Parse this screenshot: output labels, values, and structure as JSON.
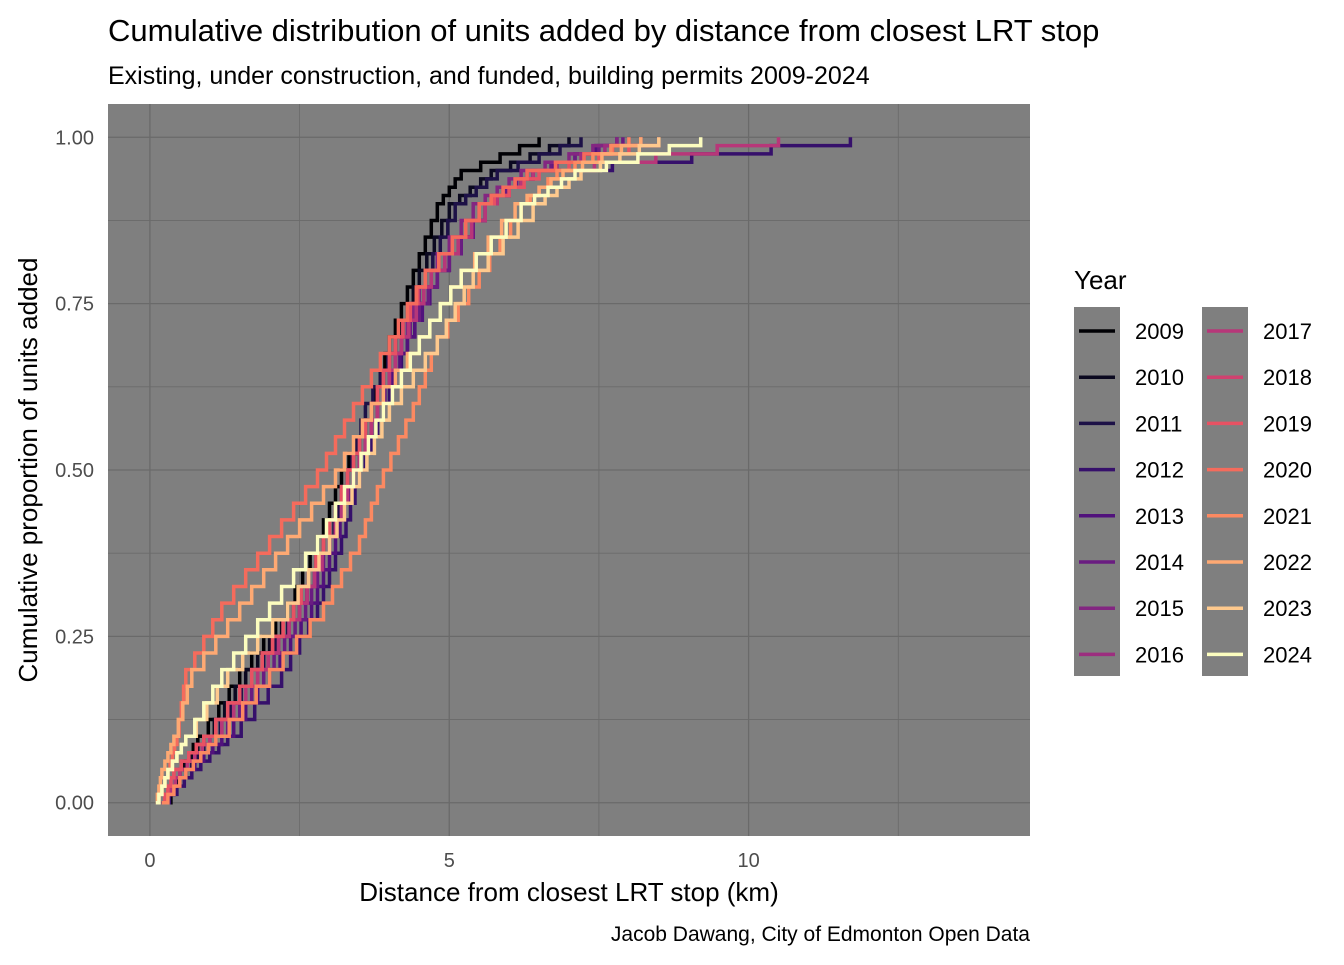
{
  "chart_data": {
    "type": "line",
    "title": "Cumulative distribution of units added by distance from closest LRT stop",
    "subtitle": "Existing, under construction, and funded, building permits 2009-2024",
    "xlabel": "Distance from closest LRT stop (km)",
    "ylabel": "Cumulative proportion of units added",
    "caption": "Jacob Dawang, City of Edmonton Open Data",
    "xlim": [
      -0.7,
      14.7
    ],
    "ylim": [
      -0.05,
      1.05
    ],
    "x_ticks": [
      {
        "value": 0,
        "label": "0"
      },
      {
        "value": 5,
        "label": "5"
      },
      {
        "value": 10,
        "label": "10"
      }
    ],
    "y_ticks": [
      {
        "value": 0,
        "label": "0.00"
      },
      {
        "value": 0.25,
        "label": "0.25"
      },
      {
        "value": 0.5,
        "label": "0.50"
      },
      {
        "value": 0.75,
        "label": "0.75"
      },
      {
        "value": 1,
        "label": "1.00"
      }
    ],
    "grid": true,
    "panel_background": "#7F7F7F",
    "grid_color": "#6A6A6A",
    "legend": {
      "title": "Year",
      "placement": "right"
    },
    "y_levels": [
      0,
      0.05,
      0.1,
      0.2,
      0.3,
      0.4,
      0.5,
      0.6,
      0.7,
      0.8,
      0.9,
      0.95,
      1.0
    ],
    "series": [
      {
        "name": "2009",
        "color": "#000004",
        "x": [
          0.3,
          0.5,
          0.8,
          1.5,
          2.3,
          2.8,
          3.2,
          3.7,
          4.0,
          4.4,
          4.8,
          5.2,
          6.5
        ]
      },
      {
        "name": "2010",
        "color": "#0B0920",
        "x": [
          0.2,
          0.5,
          0.9,
          1.6,
          2.4,
          2.9,
          3.3,
          3.7,
          4.1,
          4.5,
          5.0,
          5.7,
          7.0
        ]
      },
      {
        "name": "2011",
        "color": "#1D1147",
        "x": [
          0.2,
          0.6,
          1.0,
          1.7,
          2.5,
          3.0,
          3.3,
          3.6,
          4.1,
          4.6,
          5.1,
          5.8,
          7.2
        ]
      },
      {
        "name": "2012",
        "color": "#36106B",
        "x": [
          0.2,
          0.7,
          1.3,
          2.2,
          2.8,
          3.2,
          3.5,
          3.9,
          4.3,
          4.8,
          5.6,
          6.4,
          11.7
        ]
      },
      {
        "name": "2013",
        "color": "#51127C",
        "x": [
          0.2,
          0.6,
          1.2,
          2.0,
          2.7,
          3.1,
          3.4,
          3.8,
          4.3,
          4.8,
          5.6,
          6.4,
          7.8
        ]
      },
      {
        "name": "2014",
        "color": "#6A1C81",
        "x": [
          0.2,
          0.6,
          1.1,
          1.9,
          2.6,
          3.0,
          3.4,
          3.8,
          4.2,
          4.8,
          5.6,
          6.3,
          7.9
        ]
      },
      {
        "name": "2015",
        "color": "#832681",
        "x": [
          0.2,
          0.5,
          1.0,
          1.8,
          2.5,
          3.0,
          3.4,
          3.8,
          4.2,
          4.6,
          5.4,
          6.2,
          7.8
        ]
      },
      {
        "name": "2016",
        "color": "#9C2E7F",
        "x": [
          0.2,
          0.5,
          1.0,
          1.8,
          2.5,
          3.0,
          3.4,
          3.8,
          4.2,
          4.7,
          5.6,
          6.4,
          8.0
        ]
      },
      {
        "name": "2017",
        "color": "#B73779",
        "x": [
          0.2,
          0.5,
          1.0,
          1.8,
          2.5,
          3.0,
          3.4,
          3.8,
          4.2,
          4.7,
          5.6,
          6.4,
          10.5
        ]
      },
      {
        "name": "2018",
        "color": "#D0416F",
        "x": [
          0.2,
          0.4,
          0.9,
          1.7,
          2.4,
          2.9,
          3.3,
          3.7,
          4.1,
          4.6,
          5.5,
          6.3,
          8.2
        ]
      },
      {
        "name": "2019",
        "color": "#E75263",
        "x": [
          0.2,
          0.4,
          0.9,
          1.7,
          2.4,
          2.9,
          3.3,
          3.7,
          4.1,
          4.6,
          5.5,
          6.5,
          8.5
        ]
      },
      {
        "name": "2020",
        "color": "#F56B5C",
        "x": [
          0.1,
          0.3,
          0.45,
          0.6,
          1.2,
          2.0,
          2.8,
          3.4,
          4.0,
          4.6,
          5.5,
          6.3,
          8.2
        ]
      },
      {
        "name": "2021",
        "color": "#FC8961",
        "x": [
          0.2,
          0.6,
          1.1,
          2.0,
          2.9,
          3.5,
          3.9,
          4.4,
          4.8,
          5.5,
          6.2,
          6.8,
          8.0
        ]
      },
      {
        "name": "2022",
        "color": "#FEA973",
        "x": [
          0.1,
          0.2,
          0.4,
          0.7,
          1.5,
          2.3,
          3.1,
          3.7,
          4.5,
          5.2,
          6.1,
          6.9,
          8.2
        ]
      },
      {
        "name": "2023",
        "color": "#FEC98D",
        "x": [
          0.1,
          0.3,
          0.6,
          1.3,
          2.3,
          3.0,
          3.5,
          4.0,
          4.8,
          5.4,
          6.4,
          7.2,
          8.5
        ]
      },
      {
        "name": "2024",
        "color": "#FCFDBF",
        "x": [
          0.1,
          0.3,
          0.6,
          1.2,
          2.0,
          2.8,
          3.4,
          3.9,
          4.5,
          5.2,
          6.2,
          7.1,
          9.2
        ]
      }
    ]
  }
}
